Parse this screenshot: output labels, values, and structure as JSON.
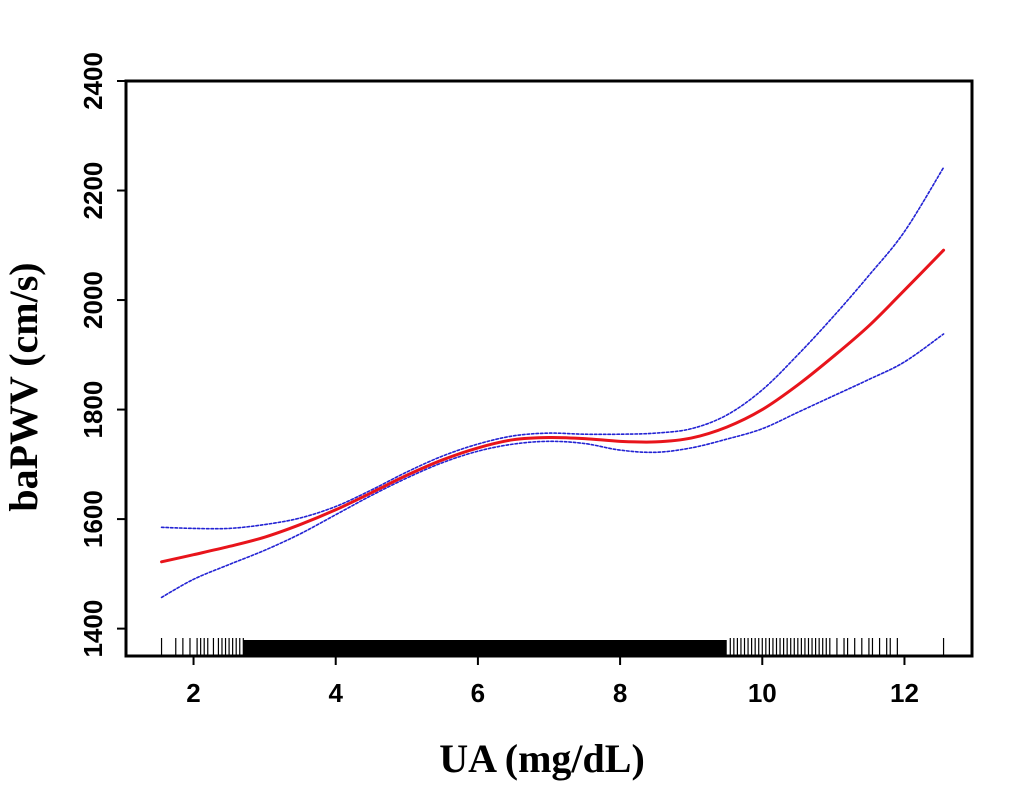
{
  "chart_data": {
    "type": "line",
    "title": "",
    "xlabel": "UA (mg/dL)",
    "ylabel": "baPWV (cm/s)",
    "xlim": [
      1.05,
      12.95
    ],
    "ylim": [
      1350,
      2400
    ],
    "x_ticks": [
      2,
      4,
      6,
      8,
      10,
      12
    ],
    "y_ticks": [
      1400,
      1600,
      1800,
      2000,
      2200,
      2400
    ],
    "grid": false,
    "legend": "none",
    "colors": {
      "fit": "#e8141b",
      "ci": "#2323d4",
      "axis": "#000000"
    },
    "series": [
      {
        "role": "fit",
        "style": "solid",
        "x": [
          1.55,
          2.0,
          2.5,
          3.0,
          3.5,
          4.0,
          4.5,
          5.0,
          5.5,
          6.0,
          6.5,
          7.0,
          7.5,
          8.0,
          8.5,
          9.0,
          9.5,
          10.0,
          10.5,
          11.0,
          11.5,
          12.0,
          12.55
        ],
        "y": [
          1522,
          1535,
          1550,
          1567,
          1590,
          1617,
          1648,
          1680,
          1708,
          1730,
          1745,
          1749,
          1747,
          1742,
          1741,
          1748,
          1768,
          1800,
          1845,
          1897,
          1953,
          2018,
          2091
        ]
      },
      {
        "role": "ci-upper",
        "style": "dotted",
        "x": [
          1.55,
          2.0,
          2.5,
          3.0,
          3.5,
          4.0,
          4.5,
          5.0,
          5.5,
          6.0,
          6.5,
          7.0,
          7.5,
          8.0,
          8.5,
          9.0,
          9.5,
          10.0,
          10.5,
          11.0,
          11.5,
          12.0,
          12.55
        ],
        "y": [
          1585,
          1583,
          1583,
          1590,
          1602,
          1623,
          1653,
          1686,
          1715,
          1737,
          1752,
          1757,
          1755,
          1755,
          1757,
          1765,
          1790,
          1836,
          1900,
          1970,
          2045,
          2125,
          2242
        ]
      },
      {
        "role": "ci-lower",
        "style": "dotted",
        "x": [
          1.55,
          2.0,
          2.5,
          3.0,
          3.5,
          4.0,
          4.5,
          5.0,
          5.5,
          6.0,
          6.5,
          7.0,
          7.5,
          8.0,
          8.5,
          9.0,
          9.5,
          10.0,
          10.5,
          11.0,
          11.5,
          12.0,
          12.55
        ],
        "y": [
          1457,
          1490,
          1517,
          1543,
          1573,
          1608,
          1643,
          1675,
          1703,
          1724,
          1737,
          1742,
          1738,
          1726,
          1722,
          1730,
          1746,
          1765,
          1795,
          1825,
          1855,
          1887,
          1938
        ]
      }
    ],
    "rug": {
      "sparse_left": [
        1.55,
        1.75,
        1.85,
        1.95,
        2.05,
        2.1,
        2.15,
        2.2,
        2.28,
        2.35,
        2.4,
        2.45,
        2.5,
        2.55,
        2.6,
        2.65,
        2.7
      ],
      "dense_range": [
        2.7,
        9.5
      ],
      "sparse_right": [
        9.55,
        9.6,
        9.65,
        9.7,
        9.75,
        9.8,
        9.85,
        9.9,
        9.95,
        10.0,
        10.05,
        10.1,
        10.15,
        10.2,
        10.25,
        10.3,
        10.35,
        10.4,
        10.45,
        10.5,
        10.55,
        10.6,
        10.65,
        10.7,
        10.75,
        10.8,
        10.85,
        10.9,
        10.95,
        11.05,
        11.15,
        11.2,
        11.3,
        11.4,
        11.5,
        11.55,
        11.65,
        11.75,
        11.8,
        11.9,
        12.55
      ]
    }
  }
}
